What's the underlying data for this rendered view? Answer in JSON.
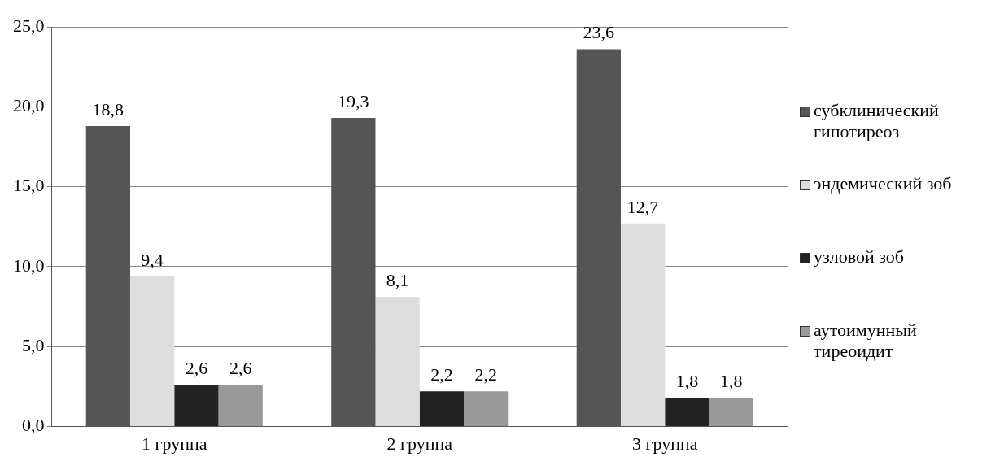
{
  "chart_data": {
    "type": "bar",
    "categories": [
      "1 группа",
      "2 группа",
      "3 группа"
    ],
    "series": [
      {
        "name": "субклинический гипотиреоз",
        "color": "#555555",
        "values": [
          18.8,
          19.3,
          23.6
        ],
        "value_labels": [
          "18,8",
          "19,3",
          "23,6"
        ]
      },
      {
        "name": "эндемический зоб",
        "color": "#dddddd",
        "values": [
          9.4,
          8.1,
          12.7
        ],
        "value_labels": [
          "9,4",
          "8,1",
          "12,7"
        ]
      },
      {
        "name": "узловой зоб",
        "color": "#222222",
        "values": [
          2.6,
          2.2,
          1.8
        ],
        "value_labels": [
          "2,6",
          "2,2",
          "1,8"
        ]
      },
      {
        "name": "аутоимунный тиреоидит",
        "color": "#999999",
        "values": [
          2.6,
          2.2,
          1.8
        ],
        "value_labels": [
          "2,6",
          "2,2",
          "1,8"
        ]
      }
    ],
    "ylim": [
      0,
      25
    ],
    "yticks": [
      {
        "value": 0,
        "label": "0,0"
      },
      {
        "value": 5,
        "label": "5,0"
      },
      {
        "value": 10,
        "label": "10,0"
      },
      {
        "value": 15,
        "label": "15,0"
      },
      {
        "value": 20,
        "label": "20,0"
      },
      {
        "value": 25,
        "label": "25,0"
      }
    ],
    "grid": "y",
    "legend": "right"
  }
}
